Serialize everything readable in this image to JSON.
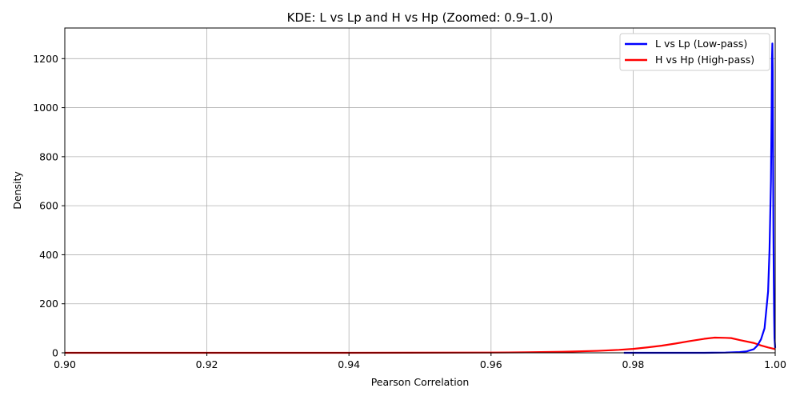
{
  "chart_data": {
    "type": "line",
    "title": "KDE: L vs Lp and H vs Hp (Zoomed: 0.9–1.0)",
    "xlabel": "Pearson Correlation",
    "ylabel": "Density",
    "xlim": [
      0.9,
      1.0
    ],
    "ylim": [
      0,
      1325
    ],
    "x_ticks": [
      0.9,
      0.92,
      0.94,
      0.96,
      0.98,
      1.0
    ],
    "x_tick_labels": [
      "0.90",
      "0.92",
      "0.94",
      "0.96",
      "0.98",
      "1.00"
    ],
    "y_ticks": [
      0,
      200,
      400,
      600,
      800,
      1000,
      1200
    ],
    "y_tick_labels": [
      "0",
      "200",
      "400",
      "600",
      "800",
      "1000",
      "1200"
    ],
    "grid": true,
    "legend_position": "top-right",
    "series": [
      {
        "name": "L vs Lp (Low-pass)",
        "color": "#0000ff",
        "x": [
          0.9787,
          0.99,
          0.993,
          0.995,
          0.996,
          0.997,
          0.9975,
          0.998,
          0.9985,
          0.999,
          0.9992,
          0.9994,
          0.9995,
          0.99955,
          0.9996,
          0.99965,
          0.9997,
          0.99975,
          0.9998,
          0.99985,
          0.9999,
          1.0
        ],
        "y": [
          0,
          0,
          1,
          3,
          6,
          15,
          30,
          55,
          100,
          250,
          420,
          700,
          1000,
          1200,
          1262,
          1150,
          800,
          500,
          300,
          150,
          60,
          20
        ]
      },
      {
        "name": "H vs Hp (High-pass)",
        "color": "#ff0000",
        "x": [
          0.9,
          0.92,
          0.94,
          0.96,
          0.965,
          0.97,
          0.975,
          0.978,
          0.98,
          0.982,
          0.984,
          0.986,
          0.988,
          0.99,
          0.9915,
          0.993,
          0.9938,
          0.995,
          0.997,
          0.998,
          0.999,
          1.0
        ],
        "y": [
          0,
          0,
          0,
          1,
          2,
          4,
          8,
          12,
          16,
          22,
          29,
          38,
          48,
          57,
          62,
          61,
          60,
          52,
          40,
          30,
          22,
          15
        ]
      }
    ]
  }
}
